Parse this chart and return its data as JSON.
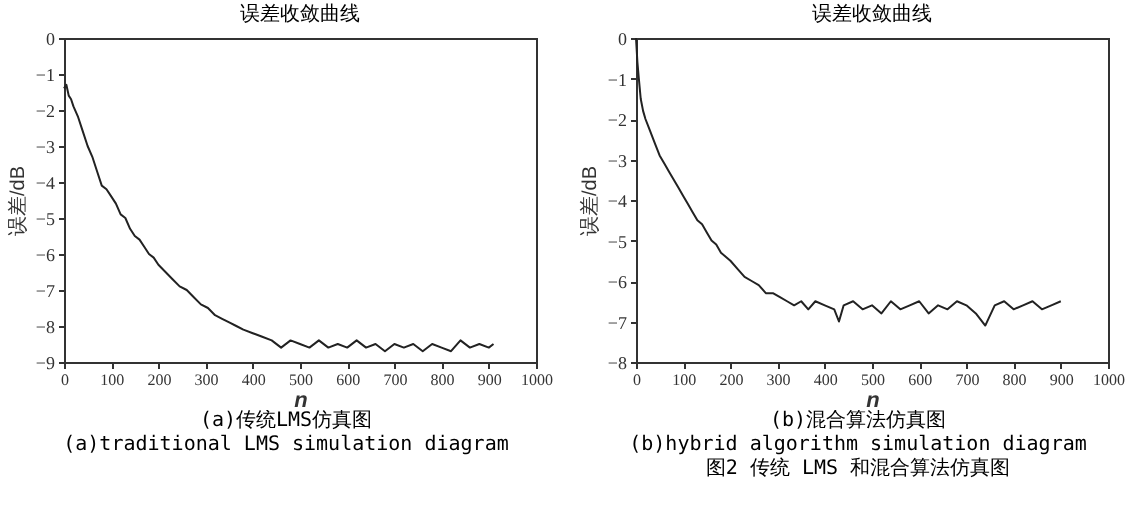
{
  "chart_data": [
    {
      "type": "line",
      "title": "误差收敛曲线",
      "xlabel": "n",
      "ylabel": "误差/dB",
      "xlim": [
        0,
        1000
      ],
      "ylim": [
        -9,
        0
      ],
      "xticks": [
        0,
        100,
        200,
        300,
        400,
        500,
        600,
        700,
        800,
        900,
        1000
      ],
      "yticks": [
        -9,
        -8,
        -7,
        -6,
        -5,
        -4,
        -3,
        -2,
        -1,
        0
      ],
      "x": [
        0,
        5,
        10,
        15,
        20,
        30,
        40,
        50,
        60,
        70,
        80,
        90,
        100,
        110,
        120,
        130,
        140,
        150,
        160,
        170,
        180,
        190,
        200,
        215,
        230,
        245,
        260,
        275,
        290,
        305,
        320,
        335,
        350,
        365,
        380,
        400,
        420,
        440,
        460,
        480,
        500,
        520,
        540,
        560,
        580,
        600,
        620,
        640,
        660,
        680,
        700,
        720,
        740,
        760,
        780,
        800,
        820,
        840,
        860,
        880,
        900,
        910
      ],
      "series": [
        {
          "color": "#222222",
          "values": [
            -1.4,
            -1.3,
            -1.6,
            -1.7,
            -1.9,
            -2.2,
            -2.6,
            -3.0,
            -3.3,
            -3.7,
            -4.1,
            -4.2,
            -4.4,
            -4.6,
            -4.9,
            -5.0,
            -5.3,
            -5.5,
            -5.6,
            -5.8,
            -6.0,
            -6.1,
            -6.3,
            -6.5,
            -6.7,
            -6.9,
            -7.0,
            -7.2,
            -7.4,
            -7.5,
            -7.7,
            -7.8,
            -7.9,
            -8.0,
            -8.1,
            -8.2,
            -8.3,
            -8.4,
            -8.6,
            -8.4,
            -8.5,
            -8.6,
            -8.4,
            -8.6,
            -8.5,
            -8.6,
            -8.4,
            -8.6,
            -8.5,
            -8.7,
            -8.5,
            -8.6,
            -8.5,
            -8.7,
            -8.5,
            -8.6,
            -8.7,
            -8.4,
            -8.6,
            -8.5,
            -8.6,
            -8.5
          ]
        }
      ],
      "annotations": [
        "(a)传统LMS仿真图",
        "(a)traditional LMS simulation diagram"
      ]
    },
    {
      "type": "line",
      "title": "误差收敛曲线",
      "xlabel": "n",
      "ylabel": "误差/dB",
      "xlim": [
        0,
        1000
      ],
      "ylim": [
        -8,
        0
      ],
      "xticks": [
        0,
        100,
        200,
        300,
        400,
        500,
        600,
        700,
        800,
        900,
        1000
      ],
      "yticks": [
        -8,
        -7,
        -6,
        -5,
        -4,
        -3,
        -2,
        -1,
        0
      ],
      "x": [
        0,
        3,
        6,
        10,
        15,
        20,
        30,
        40,
        50,
        60,
        70,
        80,
        90,
        100,
        110,
        120,
        130,
        140,
        150,
        160,
        170,
        180,
        190,
        200,
        215,
        230,
        245,
        260,
        275,
        290,
        305,
        320,
        335,
        350,
        365,
        380,
        400,
        420,
        430,
        440,
        460,
        480,
        500,
        520,
        540,
        560,
        580,
        600,
        620,
        640,
        660,
        680,
        700,
        720,
        740,
        760,
        780,
        800,
        820,
        840,
        860,
        880,
        900
      ],
      "series": [
        {
          "color": "#222222",
          "values": [
            0,
            -0.6,
            -1.0,
            -1.5,
            -1.8,
            -2.0,
            -2.3,
            -2.6,
            -2.9,
            -3.1,
            -3.3,
            -3.5,
            -3.7,
            -3.9,
            -4.1,
            -4.3,
            -4.5,
            -4.6,
            -4.8,
            -5.0,
            -5.1,
            -5.3,
            -5.4,
            -5.5,
            -5.7,
            -5.9,
            -6.0,
            -6.1,
            -6.3,
            -6.3,
            -6.4,
            -6.5,
            -6.6,
            -6.5,
            -6.7,
            -6.5,
            -6.6,
            -6.7,
            -7.0,
            -6.6,
            -6.5,
            -6.7,
            -6.6,
            -6.8,
            -6.5,
            -6.7,
            -6.6,
            -6.5,
            -6.8,
            -6.6,
            -6.7,
            -6.5,
            -6.6,
            -6.8,
            -7.1,
            -6.6,
            -6.5,
            -6.7,
            -6.6,
            -6.5,
            -6.7,
            -6.6,
            -6.5
          ]
        }
      ],
      "annotations": [
        "(b)混合算法仿真图",
        "(b)hybrid algorithm simulation diagram",
        "图2 传统 LMS 和混合算法仿真图"
      ]
    }
  ]
}
